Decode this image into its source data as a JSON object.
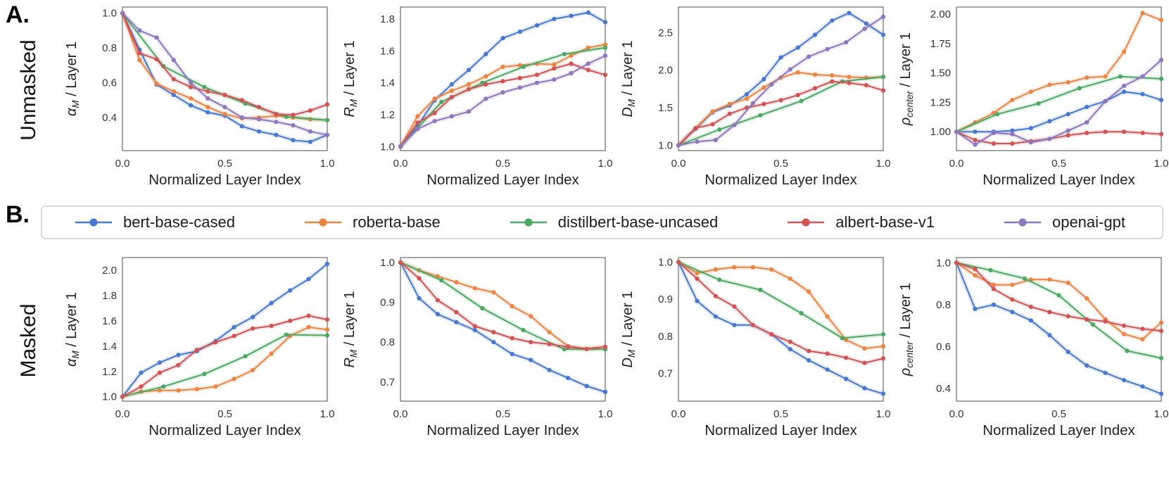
{
  "figure": {
    "panel_a_label": "A.",
    "panel_b_label": "B.",
    "row_a_label": "Unmasked",
    "row_b_label": "Masked",
    "xlabel": "Normalized Layer Index",
    "x_ticks": [
      {
        "v": 0.0,
        "label": "0.0"
      },
      {
        "v": 0.5,
        "label": "0.5"
      },
      {
        "v": 1.0,
        "label": "1.0"
      }
    ]
  },
  "legend": {
    "items": [
      {
        "label": "bert-base-cased",
        "color": "#4878cf"
      },
      {
        "label": "roberta-base",
        "color": "#ec8443"
      },
      {
        "label": "distilbert-base-uncased",
        "color": "#4da863"
      },
      {
        "label": "albert-base-v1",
        "color": "#d05454"
      },
      {
        "label": "openai-gpt",
        "color": "#8d77bd"
      }
    ]
  },
  "chart_data": [
    {
      "id": "unmasked-alpha",
      "type": "line",
      "row": "Unmasked",
      "ylabel": {
        "sym": "α",
        "sub": "M",
        "suffix": " / Layer 1"
      },
      "xlabel": "Normalized Layer Index",
      "xlim": [
        0,
        1
      ],
      "ylim": [
        0.21,
        1.035
      ],
      "yticks": [
        {
          "v": 1.0,
          "label": "1.0"
        },
        {
          "v": 0.8,
          "label": "0.8"
        },
        {
          "v": 0.6,
          "label": "0.6"
        },
        {
          "v": 0.4,
          "label": "0.4"
        }
      ],
      "series": [
        {
          "name": "bert-base-cased",
          "y": [
            1.0,
            0.79,
            0.59,
            0.53,
            0.47,
            0.43,
            0.41,
            0.35,
            0.32,
            0.3,
            0.27,
            0.26,
            0.3
          ]
        },
        {
          "name": "roberta-base",
          "y": [
            1.0,
            0.73,
            0.595,
            0.55,
            0.51,
            0.46,
            0.42,
            0.395,
            0.4,
            0.41,
            0.4,
            0.39,
            0.385
          ]
        },
        {
          "name": "distilbert-base-uncased",
          "y": [
            1.0,
            0.695,
            0.575,
            0.48,
            0.405,
            0.385
          ]
        },
        {
          "name": "albert-base-v1",
          "y": [
            1.0,
            0.77,
            0.735,
            0.62,
            0.575,
            0.55,
            0.53,
            0.5,
            0.46,
            0.42,
            0.415,
            0.44,
            0.475
          ]
        },
        {
          "name": "openai-gpt",
          "y": [
            1.0,
            0.9,
            0.86,
            0.73,
            0.6,
            0.51,
            0.46,
            0.4,
            0.39,
            0.375,
            0.355,
            0.32,
            0.3
          ]
        }
      ]
    },
    {
      "id": "unmasked-rm",
      "type": "line",
      "row": "Unmasked",
      "ylabel": {
        "sym": "R",
        "sub": "M",
        "suffix": " / Layer 1"
      },
      "xlabel": "Normalized Layer Index",
      "xlim": [
        0,
        1
      ],
      "ylim": [
        0.975,
        1.875
      ],
      "yticks": [
        {
          "v": 1.8,
          "label": "1.8"
        },
        {
          "v": 1.6,
          "label": "1.6"
        },
        {
          "v": 1.4,
          "label": "1.4"
        },
        {
          "v": 1.2,
          "label": "1.2"
        },
        {
          "v": 1.0,
          "label": "1.0"
        }
      ],
      "series": [
        {
          "name": "bert-base-cased",
          "y": [
            1.0,
            1.13,
            1.29,
            1.39,
            1.48,
            1.58,
            1.68,
            1.72,
            1.76,
            1.8,
            1.82,
            1.84,
            1.78
          ]
        },
        {
          "name": "roberta-base",
          "y": [
            1.0,
            1.19,
            1.3,
            1.35,
            1.39,
            1.44,
            1.5,
            1.51,
            1.52,
            1.515,
            1.57,
            1.62,
            1.64
          ]
        },
        {
          "name": "distilbert-base-uncased",
          "y": [
            1.0,
            1.28,
            1.4,
            1.5,
            1.58,
            1.62
          ]
        },
        {
          "name": "albert-base-v1",
          "y": [
            1.0,
            1.15,
            1.21,
            1.31,
            1.36,
            1.39,
            1.41,
            1.43,
            1.45,
            1.49,
            1.52,
            1.48,
            1.45
          ]
        },
        {
          "name": "openai-gpt",
          "y": [
            1.0,
            1.11,
            1.16,
            1.19,
            1.22,
            1.3,
            1.34,
            1.37,
            1.4,
            1.42,
            1.46,
            1.52,
            1.57
          ]
        }
      ]
    },
    {
      "id": "unmasked-dm",
      "type": "line",
      "row": "Unmasked",
      "ylabel": {
        "sym": "D",
        "sub": "M",
        "suffix": " / Layer 1"
      },
      "xlabel": "Normalized Layer Index",
      "xlim": [
        0,
        1
      ],
      "ylim": [
        0.93,
        2.84
      ],
      "yticks": [
        {
          "v": 2.5,
          "label": "2.5"
        },
        {
          "v": 2.0,
          "label": "2.0"
        },
        {
          "v": 1.5,
          "label": "1.5"
        },
        {
          "v": 1.0,
          "label": "1.0"
        }
      ],
      "series": [
        {
          "name": "bert-base-cased",
          "y": [
            1.0,
            1.22,
            1.44,
            1.53,
            1.68,
            1.88,
            2.17,
            2.3,
            2.47,
            2.66,
            2.76,
            2.62,
            2.47
          ]
        },
        {
          "name": "roberta-base",
          "y": [
            1.0,
            1.23,
            1.45,
            1.55,
            1.62,
            1.77,
            1.9,
            1.97,
            1.94,
            1.93,
            1.91,
            1.9,
            1.91
          ]
        },
        {
          "name": "distilbert-base-uncased",
          "y": [
            1.0,
            1.21,
            1.4,
            1.59,
            1.85,
            1.91
          ]
        },
        {
          "name": "albert-base-v1",
          "y": [
            1.0,
            1.23,
            1.28,
            1.42,
            1.5,
            1.55,
            1.6,
            1.67,
            1.76,
            1.85,
            1.83,
            1.8,
            1.73
          ]
        },
        {
          "name": "openai-gpt",
          "y": [
            1.0,
            1.05,
            1.07,
            1.27,
            1.56,
            1.81,
            2.01,
            2.18,
            2.28,
            2.37,
            2.55,
            2.71
          ]
        }
      ]
    },
    {
      "id": "unmasked-rho",
      "type": "line",
      "row": "Unmasked",
      "ylabel": {
        "sym": "ρ",
        "sub": "center",
        "suffix": " / Layer 1"
      },
      "xlabel": "Normalized Layer Index",
      "xlim": [
        0,
        1
      ],
      "ylim": [
        0.84,
        2.06
      ],
      "yticks": [
        {
          "v": 2.0,
          "label": "2.00"
        },
        {
          "v": 1.75,
          "label": "1.75"
        },
        {
          "v": 1.5,
          "label": "1.50"
        },
        {
          "v": 1.25,
          "label": "1.25"
        },
        {
          "v": 1.0,
          "label": "1.00"
        }
      ],
      "series": [
        {
          "name": "bert-base-cased",
          "y": [
            1.0,
            1.0,
            1.0,
            1.01,
            1.03,
            1.09,
            1.15,
            1.21,
            1.26,
            1.34,
            1.32,
            1.27
          ]
        },
        {
          "name": "roberta-base",
          "y": [
            1.0,
            1.08,
            1.16,
            1.27,
            1.34,
            1.4,
            1.42,
            1.46,
            1.47,
            1.68,
            2.01,
            1.95
          ]
        },
        {
          "name": "distilbert-base-uncased",
          "y": [
            1.0,
            1.15,
            1.24,
            1.37,
            1.47,
            1.45
          ]
        },
        {
          "name": "albert-base-v1",
          "y": [
            1.0,
            0.93,
            0.9,
            0.9,
            0.92,
            0.94,
            0.97,
            0.99,
            1.0,
            1.0,
            0.99,
            0.98
          ]
        },
        {
          "name": "openai-gpt",
          "y": [
            1.0,
            0.89,
            0.99,
            0.98,
            0.91,
            0.94,
            1.01,
            1.08,
            1.26,
            1.39,
            1.47,
            1.61
          ]
        }
      ]
    },
    {
      "id": "masked-alpha",
      "type": "line",
      "row": "Masked",
      "ylabel": {
        "sym": "α",
        "sub": "M",
        "suffix": " / Layer 1"
      },
      "xlabel": "Normalized Layer Index",
      "xlim": [
        0,
        1
      ],
      "ylim": [
        0.965,
        2.1
      ],
      "yticks": [
        {
          "v": 2.0,
          "label": "2.0"
        },
        {
          "v": 1.8,
          "label": "1.8"
        },
        {
          "v": 1.6,
          "label": "1.6"
        },
        {
          "v": 1.4,
          "label": "1.4"
        },
        {
          "v": 1.2,
          "label": "1.2"
        },
        {
          "v": 1.0,
          "label": "1.0"
        }
      ],
      "series": [
        {
          "name": "bert-base-cased",
          "y": [
            1.0,
            1.19,
            1.27,
            1.33,
            1.36,
            1.44,
            1.55,
            1.63,
            1.74,
            1.84,
            1.93,
            2.05
          ]
        },
        {
          "name": "roberta-base",
          "y": [
            1.0,
            1.04,
            1.05,
            1.05,
            1.06,
            1.08,
            1.14,
            1.21,
            1.34,
            1.48,
            1.55,
            1.53
          ]
        },
        {
          "name": "distilbert-base-uncased",
          "y": [
            1.0,
            1.08,
            1.18,
            1.32,
            1.49,
            1.485
          ]
        },
        {
          "name": "albert-base-v1",
          "y": [
            1.0,
            1.08,
            1.19,
            1.25,
            1.37,
            1.43,
            1.48,
            1.54,
            1.56,
            1.6,
            1.64,
            1.61
          ]
        }
      ]
    },
    {
      "id": "masked-rm",
      "type": "line",
      "row": "Masked",
      "ylabel": {
        "sym": "R",
        "sub": "M",
        "suffix": " / Layer 1"
      },
      "xlabel": "Normalized Layer Index",
      "xlim": [
        0,
        1
      ],
      "ylim": [
        0.652,
        1.012
      ],
      "yticks": [
        {
          "v": 1.0,
          "label": "1.0"
        },
        {
          "v": 0.9,
          "label": "0.9"
        },
        {
          "v": 0.8,
          "label": "0.8"
        },
        {
          "v": 0.7,
          "label": "0.7"
        }
      ],
      "series": [
        {
          "name": "bert-base-cased",
          "y": [
            1.0,
            0.91,
            0.87,
            0.85,
            0.83,
            0.8,
            0.77,
            0.755,
            0.73,
            0.71,
            0.69,
            0.675
          ]
        },
        {
          "name": "roberta-base",
          "y": [
            1.0,
            0.98,
            0.965,
            0.95,
            0.935,
            0.925,
            0.89,
            0.865,
            0.825,
            0.79,
            0.783,
            0.788
          ]
        },
        {
          "name": "distilbert-base-uncased",
          "y": [
            1.0,
            0.955,
            0.885,
            0.83,
            0.782,
            0.782
          ]
        },
        {
          "name": "albert-base-v1",
          "y": [
            1.0,
            0.96,
            0.905,
            0.875,
            0.84,
            0.825,
            0.81,
            0.8,
            0.795,
            0.788,
            0.783,
            0.788
          ]
        }
      ]
    },
    {
      "id": "masked-dm",
      "type": "line",
      "row": "Masked",
      "ylabel": {
        "sym": "D",
        "sub": "M",
        "suffix": " / Layer 1"
      },
      "xlabel": "Normalized Layer Index",
      "xlim": [
        0,
        1
      ],
      "ylim": [
        0.625,
        1.012
      ],
      "yticks": [
        {
          "v": 1.0,
          "label": "1.0"
        },
        {
          "v": 0.9,
          "label": "0.9"
        },
        {
          "v": 0.8,
          "label": "0.8"
        },
        {
          "v": 0.7,
          "label": "0.7"
        }
      ],
      "series": [
        {
          "name": "bert-base-cased",
          "y": [
            1.0,
            0.895,
            0.853,
            0.83,
            0.83,
            0.805,
            0.765,
            0.735,
            0.71,
            0.685,
            0.66,
            0.645
          ]
        },
        {
          "name": "roberta-base",
          "y": [
            1.0,
            0.97,
            0.98,
            0.986,
            0.986,
            0.98,
            0.955,
            0.92,
            0.853,
            0.79,
            0.767,
            0.773
          ]
        },
        {
          "name": "distilbert-base-uncased",
          "y": [
            1.0,
            0.952,
            0.925,
            0.862,
            0.795,
            0.805
          ]
        },
        {
          "name": "albert-base-v1",
          "y": [
            1.0,
            0.955,
            0.908,
            0.88,
            0.83,
            0.805,
            0.785,
            0.76,
            0.753,
            0.742,
            0.728,
            0.74
          ]
        }
      ]
    },
    {
      "id": "masked-rho",
      "type": "line",
      "row": "Masked",
      "ylabel": {
        "sym": "ρ",
        "sub": "center",
        "suffix": " / Layer 1"
      },
      "xlabel": "Normalized Layer Index",
      "xlim": [
        0,
        1
      ],
      "ylim": [
        0.34,
        1.025
      ],
      "yticks": [
        {
          "v": 1.0,
          "label": "1.0"
        },
        {
          "v": 0.8,
          "label": "0.8"
        },
        {
          "v": 0.6,
          "label": "0.6"
        },
        {
          "v": 0.4,
          "label": "0.4"
        }
      ],
      "series": [
        {
          "name": "bert-base-cased",
          "y": [
            1.0,
            0.78,
            0.8,
            0.765,
            0.725,
            0.655,
            0.575,
            0.51,
            0.475,
            0.44,
            0.41,
            0.375
          ]
        },
        {
          "name": "roberta-base",
          "y": [
            1.0,
            0.94,
            0.895,
            0.895,
            0.92,
            0.92,
            0.905,
            0.83,
            0.73,
            0.66,
            0.635,
            0.715
          ]
        },
        {
          "name": "distilbert-base-uncased",
          "y": [
            1.0,
            0.965,
            0.925,
            0.845,
            0.705,
            0.58,
            0.545
          ]
        },
        {
          "name": "albert-base-v1",
          "y": [
            1.0,
            0.97,
            0.875,
            0.825,
            0.79,
            0.765,
            0.745,
            0.73,
            0.72,
            0.7,
            0.685,
            0.675
          ]
        }
      ]
    }
  ]
}
